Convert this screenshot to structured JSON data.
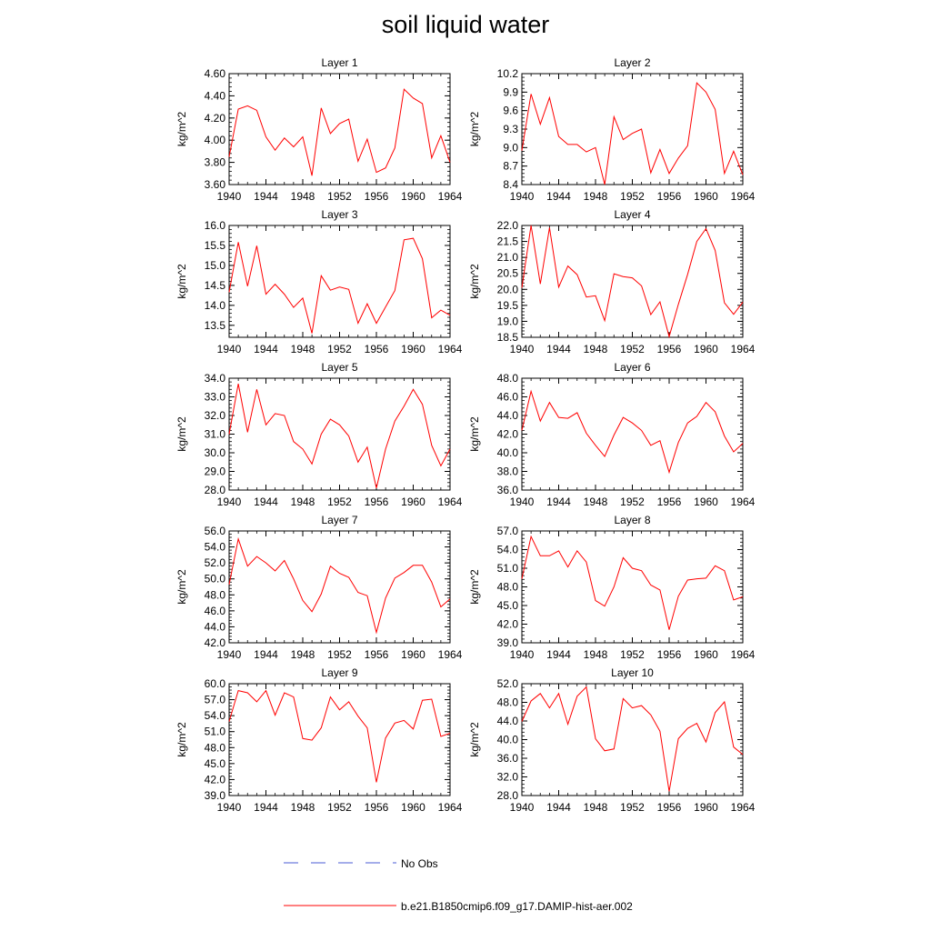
{
  "title": "soil liquid water",
  "legend": {
    "obs_label": "No Obs",
    "model_label": "b.e21.B1850cmip6.f09_g17.DAMIP-hist-aer.002"
  },
  "colors": {
    "model": "#ff0000",
    "obs": "#4a5bd4",
    "axis": "#000000"
  },
  "chart_data": [
    {
      "type": "line",
      "title": "Layer 1",
      "xlabel": "",
      "ylabel": "kg/m^2",
      "xlim": [
        1940,
        1964
      ],
      "ylim": [
        3.6,
        4.6
      ],
      "x_ticks": [
        "1940",
        "1944",
        "1948",
        "1952",
        "1956",
        "1960",
        "1964"
      ],
      "y_ticks": [
        "3.60",
        "3.80",
        "4.00",
        "4.20",
        "4.40",
        "4.60"
      ],
      "series": [
        {
          "name": "b.e21.B1850cmip6.f09_g17.DAMIP-hist-aer.002",
          "x": [
            1940,
            1941,
            1942,
            1943,
            1944,
            1945,
            1946,
            1947,
            1948,
            1949,
            1950,
            1951,
            1952,
            1953,
            1954,
            1955,
            1956,
            1957,
            1958,
            1959,
            1960,
            1961,
            1962,
            1963,
            1964
          ],
          "values": [
            3.85,
            4.28,
            4.31,
            4.27,
            4.03,
            3.91,
            4.02,
            3.94,
            4.03,
            3.68,
            4.29,
            4.06,
            4.15,
            4.19,
            3.81,
            4.01,
            3.71,
            3.75,
            3.93,
            4.46,
            4.38,
            4.33,
            3.84,
            4.04,
            3.8
          ]
        }
      ]
    },
    {
      "type": "line",
      "title": "Layer 2",
      "xlabel": "",
      "ylabel": "kg/m^2",
      "xlim": [
        1940,
        1964
      ],
      "ylim": [
        8.4,
        10.2
      ],
      "x_ticks": [
        "1940",
        "1944",
        "1948",
        "1952",
        "1956",
        "1960",
        "1964"
      ],
      "y_ticks": [
        "8.4",
        "8.7",
        "9.0",
        "9.3",
        "9.6",
        "9.9",
        "10.2"
      ],
      "series": [
        {
          "name": "b.e21.B1850cmip6.f09_g17.DAMIP-hist-aer.002",
          "x": [
            1940,
            1941,
            1942,
            1943,
            1944,
            1945,
            1946,
            1947,
            1948,
            1949,
            1950,
            1951,
            1952,
            1953,
            1954,
            1955,
            1956,
            1957,
            1958,
            1959,
            1960,
            1961,
            1962,
            1963,
            1964
          ],
          "values": [
            8.95,
            9.87,
            9.38,
            9.81,
            9.18,
            9.05,
            9.05,
            8.93,
            9.0,
            8.4,
            9.5,
            9.13,
            9.23,
            9.3,
            8.59,
            8.97,
            8.58,
            8.83,
            9.03,
            10.05,
            9.9,
            9.62,
            8.58,
            8.94,
            8.56
          ]
        }
      ]
    },
    {
      "type": "line",
      "title": "Layer 3",
      "xlabel": "",
      "ylabel": "kg/m^2",
      "xlim": [
        1940,
        1964
      ],
      "ylim": [
        13.2,
        16.0
      ],
      "x_ticks": [
        "1940",
        "1944",
        "1948",
        "1952",
        "1956",
        "1960",
        "1964"
      ],
      "y_ticks": [
        "13.5",
        "14.0",
        "14.5",
        "15.0",
        "15.5",
        "16.0"
      ],
      "series": [
        {
          "name": "b.e21.B1850cmip6.f09_g17.DAMIP-hist-aer.002",
          "x": [
            1940,
            1941,
            1942,
            1943,
            1944,
            1945,
            1946,
            1947,
            1948,
            1949,
            1950,
            1951,
            1952,
            1953,
            1954,
            1955,
            1956,
            1957,
            1958,
            1959,
            1960,
            1961,
            1962,
            1963,
            1964
          ],
          "values": [
            14.33,
            15.58,
            14.48,
            15.49,
            14.28,
            14.53,
            14.28,
            13.95,
            14.18,
            13.3,
            14.74,
            14.38,
            14.46,
            14.4,
            13.55,
            14.04,
            13.55,
            13.96,
            14.37,
            15.64,
            15.68,
            15.17,
            13.69,
            13.88,
            13.75
          ]
        }
      ]
    },
    {
      "type": "line",
      "title": "Layer 4",
      "xlabel": "",
      "ylabel": "kg/m^2",
      "xlim": [
        1940,
        1964
      ],
      "ylim": [
        18.5,
        22.0
      ],
      "x_ticks": [
        "1940",
        "1944",
        "1948",
        "1952",
        "1956",
        "1960",
        "1964"
      ],
      "y_ticks": [
        "18.5",
        "19.0",
        "19.5",
        "20.0",
        "20.5",
        "21.0",
        "21.5",
        "22.0"
      ],
      "series": [
        {
          "name": "b.e21.B1850cmip6.f09_g17.DAMIP-hist-aer.002",
          "x": [
            1940,
            1941,
            1942,
            1943,
            1944,
            1945,
            1946,
            1947,
            1948,
            1949,
            1950,
            1951,
            1952,
            1953,
            1954,
            1955,
            1956,
            1957,
            1958,
            1959,
            1960,
            1961,
            1962,
            1963,
            1964
          ],
          "values": [
            20.05,
            22.0,
            20.17,
            21.93,
            20.07,
            20.73,
            20.46,
            19.76,
            19.8,
            19.02,
            20.49,
            20.4,
            20.36,
            20.11,
            19.21,
            19.61,
            18.52,
            19.53,
            20.47,
            21.5,
            21.9,
            21.22,
            19.58,
            19.22,
            19.6
          ]
        }
      ]
    },
    {
      "type": "line",
      "title": "Layer 5",
      "xlabel": "",
      "ylabel": "kg/m^2",
      "xlim": [
        1940,
        1964
      ],
      "ylim": [
        28.0,
        34.0
      ],
      "x_ticks": [
        "1940",
        "1944",
        "1948",
        "1952",
        "1956",
        "1960",
        "1964"
      ],
      "y_ticks": [
        "28.0",
        "29.0",
        "30.0",
        "31.0",
        "32.0",
        "33.0",
        "34.0"
      ],
      "series": [
        {
          "name": "b.e21.B1850cmip6.f09_g17.DAMIP-hist-aer.002",
          "x": [
            1940,
            1941,
            1942,
            1943,
            1944,
            1945,
            1946,
            1947,
            1948,
            1949,
            1950,
            1951,
            1952,
            1953,
            1954,
            1955,
            1956,
            1957,
            1958,
            1959,
            1960,
            1961,
            1962,
            1963,
            1964
          ],
          "values": [
            31.0,
            33.7,
            31.1,
            33.4,
            31.5,
            32.1,
            32.0,
            30.6,
            30.2,
            29.4,
            31.0,
            31.8,
            31.5,
            30.9,
            29.5,
            30.3,
            28.1,
            30.2,
            31.7,
            32.5,
            33.4,
            32.6,
            30.4,
            29.3,
            30.2
          ]
        }
      ]
    },
    {
      "type": "line",
      "title": "Layer 6",
      "xlabel": "",
      "ylabel": "kg/m^2",
      "xlim": [
        1940,
        1964
      ],
      "ylim": [
        36.0,
        48.0
      ],
      "x_ticks": [
        "1940",
        "1944",
        "1948",
        "1952",
        "1956",
        "1960",
        "1964"
      ],
      "y_ticks": [
        "36.0",
        "38.0",
        "40.0",
        "42.0",
        "44.0",
        "46.0",
        "48.0"
      ],
      "series": [
        {
          "name": "b.e21.B1850cmip6.f09_g17.DAMIP-hist-aer.002",
          "x": [
            1940,
            1941,
            1942,
            1943,
            1944,
            1945,
            1946,
            1947,
            1948,
            1949,
            1950,
            1951,
            1952,
            1953,
            1954,
            1955,
            1956,
            1957,
            1958,
            1959,
            1960,
            1961,
            1962,
            1963,
            1964
          ],
          "values": [
            42.4,
            46.6,
            43.4,
            45.4,
            43.8,
            43.7,
            44.3,
            42.1,
            40.8,
            39.6,
            41.9,
            43.8,
            43.2,
            42.4,
            40.8,
            41.3,
            37.9,
            41.1,
            43.2,
            43.9,
            45.4,
            44.4,
            41.8,
            40.1,
            41.0
          ]
        }
      ]
    },
    {
      "type": "line",
      "title": "Layer 7",
      "xlabel": "",
      "ylabel": "kg/m^2",
      "xlim": [
        1940,
        1964
      ],
      "ylim": [
        42.0,
        56.0
      ],
      "x_ticks": [
        "1940",
        "1944",
        "1948",
        "1952",
        "1956",
        "1960",
        "1964"
      ],
      "y_ticks": [
        "42.0",
        "44.0",
        "46.0",
        "48.0",
        "50.0",
        "52.0",
        "54.0",
        "56.0"
      ],
      "series": [
        {
          "name": "b.e21.B1850cmip6.f09_g17.DAMIP-hist-aer.002",
          "x": [
            1940,
            1941,
            1942,
            1943,
            1944,
            1945,
            1946,
            1947,
            1948,
            1949,
            1950,
            1951,
            1952,
            1953,
            1954,
            1955,
            1956,
            1957,
            1958,
            1959,
            1960,
            1961,
            1962,
            1963,
            1964
          ],
          "values": [
            49.3,
            55.0,
            51.6,
            52.8,
            52.0,
            51.0,
            52.3,
            50.0,
            47.3,
            45.9,
            48.1,
            51.6,
            50.7,
            50.2,
            48.3,
            47.9,
            43.3,
            47.6,
            50.1,
            50.8,
            51.7,
            51.7,
            49.6,
            46.5,
            47.5
          ]
        }
      ]
    },
    {
      "type": "line",
      "title": "Layer 8",
      "xlabel": "",
      "ylabel": "kg/m^2",
      "xlim": [
        1940,
        1964
      ],
      "ylim": [
        39.0,
        57.0
      ],
      "x_ticks": [
        "1940",
        "1944",
        "1948",
        "1952",
        "1956",
        "1960",
        "1964"
      ],
      "y_ticks": [
        "39.0",
        "42.0",
        "45.0",
        "48.0",
        "51.0",
        "54.0",
        "57.0"
      ],
      "series": [
        {
          "name": "b.e21.B1850cmip6.f09_g17.DAMIP-hist-aer.002",
          "x": [
            1940,
            1941,
            1942,
            1943,
            1944,
            1945,
            1946,
            1947,
            1948,
            1949,
            1950,
            1951,
            1952,
            1953,
            1954,
            1955,
            1956,
            1957,
            1958,
            1959,
            1960,
            1961,
            1962,
            1963,
            1964
          ],
          "values": [
            49.3,
            56.1,
            53.0,
            53.0,
            53.8,
            51.2,
            53.8,
            52.0,
            45.8,
            44.9,
            48.0,
            52.7,
            51.0,
            50.6,
            48.3,
            47.5,
            41.1,
            46.5,
            49.1,
            49.3,
            49.4,
            51.4,
            50.6,
            45.9,
            46.4
          ]
        }
      ]
    },
    {
      "type": "line",
      "title": "Layer 9",
      "xlabel": "",
      "ylabel": "kg/m^2",
      "xlim": [
        1940,
        1964
      ],
      "ylim": [
        39.0,
        60.0
      ],
      "x_ticks": [
        "1940",
        "1944",
        "1948",
        "1952",
        "1956",
        "1960",
        "1964"
      ],
      "y_ticks": [
        "39.0",
        "42.0",
        "45.0",
        "48.0",
        "51.0",
        "54.0",
        "57.0",
        "60.0"
      ],
      "series": [
        {
          "name": "b.e21.B1850cmip6.f09_g17.DAMIP-hist-aer.002",
          "x": [
            1940,
            1941,
            1942,
            1943,
            1944,
            1945,
            1946,
            1947,
            1948,
            1949,
            1950,
            1951,
            1952,
            1953,
            1954,
            1955,
            1956,
            1957,
            1958,
            1959,
            1960,
            1961,
            1962,
            1963,
            1964
          ],
          "values": [
            52.9,
            58.7,
            58.3,
            56.6,
            58.7,
            54.1,
            58.3,
            57.5,
            49.7,
            49.4,
            51.7,
            57.5,
            55.1,
            56.6,
            53.9,
            51.7,
            41.5,
            49.8,
            52.6,
            53.1,
            51.5,
            56.9,
            57.1,
            50.1,
            50.7
          ]
        }
      ]
    },
    {
      "type": "line",
      "title": "Layer 10",
      "xlabel": "",
      "ylabel": "kg/m^2",
      "xlim": [
        1940,
        1964
      ],
      "ylim": [
        28.0,
        52.0
      ],
      "x_ticks": [
        "1940",
        "1944",
        "1948",
        "1952",
        "1956",
        "1960",
        "1964"
      ],
      "y_ticks": [
        "28.0",
        "32.0",
        "36.0",
        "40.0",
        "44.0",
        "48.0",
        "52.0"
      ],
      "series": [
        {
          "name": "b.e21.B1850cmip6.f09_g17.DAMIP-hist-aer.002",
          "x": [
            1940,
            1941,
            1942,
            1943,
            1944,
            1945,
            1946,
            1947,
            1948,
            1949,
            1950,
            1951,
            1952,
            1953,
            1954,
            1955,
            1956,
            1957,
            1958,
            1959,
            1960,
            1961,
            1962,
            1963,
            1964
          ],
          "values": [
            43.9,
            48.3,
            49.9,
            46.8,
            49.9,
            43.3,
            49.3,
            51.3,
            40.2,
            37.6,
            38.0,
            48.8,
            46.8,
            47.3,
            45.3,
            41.8,
            28.9,
            40.2,
            42.4,
            43.5,
            39.5,
            45.8,
            48.1,
            38.4,
            36.8
          ]
        }
      ]
    }
  ]
}
